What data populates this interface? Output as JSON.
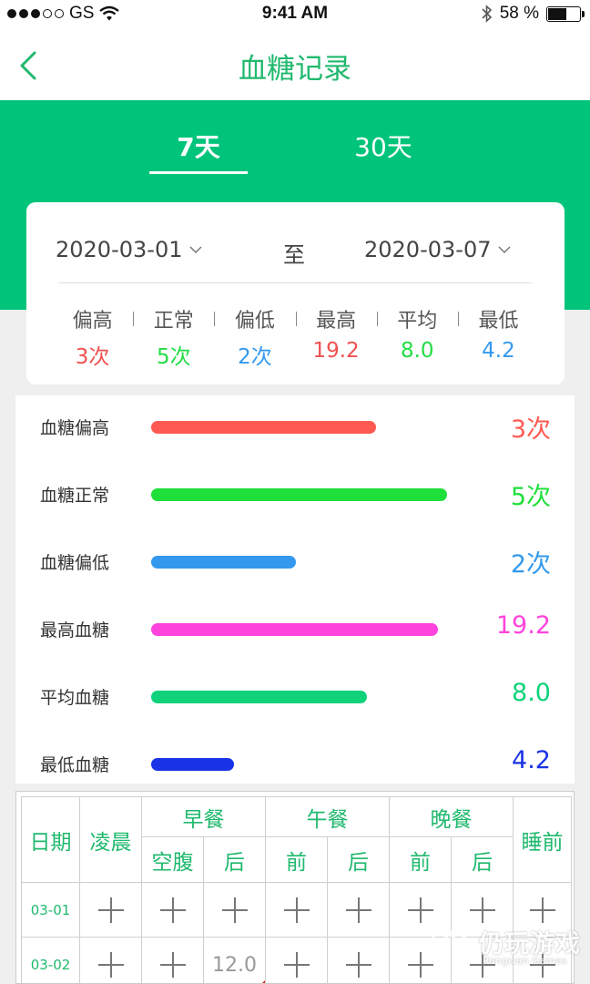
{
  "status_bar": {
    "carrier": "GS",
    "time": "9:41 AM",
    "battery_text": "58 %",
    "battery_level": 0.58
  },
  "nav": {
    "title": "血糖记录",
    "back_icon": "chevron-left-icon"
  },
  "tabs": [
    {
      "label": "7天",
      "active": true
    },
    {
      "label": "30天",
      "active": false
    }
  ],
  "date_range": {
    "start": "2020-03-01",
    "separator": "至",
    "end": "2020-03-07"
  },
  "summary": [
    {
      "label": "偏高",
      "value": "3次",
      "color": "#f05050"
    },
    {
      "label": "正常",
      "value": "5次",
      "color": "#22dd44"
    },
    {
      "label": "偏低",
      "value": "2次",
      "color": "#3399ee"
    },
    {
      "label": "最高",
      "value": "19.2",
      "color": "#f05050"
    },
    {
      "label": "平均",
      "value": "8.0",
      "color": "#22dd44"
    },
    {
      "label": "最低",
      "value": "4.2",
      "color": "#3399ee"
    }
  ],
  "bars": [
    {
      "label": "血糖偏高",
      "value": "3次",
      "level": 0.76,
      "color": "#ff5a52"
    },
    {
      "label": "血糖正常",
      "value": "5次",
      "level": 1.0,
      "color": "#1fe03a"
    },
    {
      "label": "血糖偏低",
      "value": "2次",
      "level": 0.49,
      "color": "#3399ee"
    },
    {
      "label": "最高血糖",
      "value": "19.2",
      "level": 0.97,
      "color": "#ff44dd"
    },
    {
      "label": "平均血糖",
      "value": "8.0",
      "level": 0.73,
      "color": "#0fd27a"
    },
    {
      "label": "最低血糖",
      "value": "4.2",
      "level": 0.28,
      "color": "#1a33e6"
    }
  ],
  "table": {
    "headers": {
      "date": "日期",
      "early_morning": "凌晨",
      "breakfast": "早餐",
      "lunch": "午餐",
      "dinner": "晚餐",
      "bedtime": "睡前",
      "fasting": "空腹",
      "before": "前",
      "after": "后"
    },
    "rows": [
      {
        "date": "03-01",
        "cells": [
          "",
          "",
          "",
          "",
          "",
          "",
          "",
          ""
        ]
      },
      {
        "date": "03-02",
        "cells": [
          "",
          "",
          "12.0",
          "",
          "",
          "",
          "",
          ""
        ]
      }
    ]
  },
  "watermark": {
    "text": "仍玩游戏",
    "sub": "Rengwan Games"
  }
}
